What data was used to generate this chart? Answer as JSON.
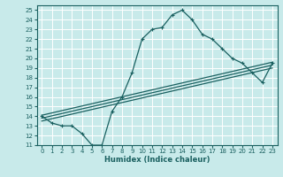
{
  "title": "",
  "xlabel": "Humidex (Indice chaleur)",
  "bg_color": "#c8eaea",
  "grid_color": "#ffffff",
  "line_color": "#1a6060",
  "xlim": [
    -0.5,
    23.5
  ],
  "ylim": [
    11,
    25.5
  ],
  "xticks": [
    0,
    1,
    2,
    3,
    4,
    5,
    6,
    7,
    8,
    9,
    10,
    11,
    12,
    13,
    14,
    15,
    16,
    17,
    18,
    19,
    20,
    21,
    22,
    23
  ],
  "yticks": [
    11,
    12,
    13,
    14,
    15,
    16,
    17,
    18,
    19,
    20,
    21,
    22,
    23,
    24,
    25
  ],
  "lines": [
    {
      "x": [
        0,
        1,
        2,
        3,
        4,
        5,
        6,
        7,
        8,
        9,
        10,
        11,
        12,
        13,
        14,
        15,
        16,
        17,
        18,
        19,
        20,
        21,
        22,
        23
      ],
      "y": [
        14,
        13.3,
        13,
        13,
        12.2,
        11,
        11,
        14.5,
        16,
        18.5,
        22,
        23,
        23.2,
        24.5,
        25,
        24,
        22.5,
        22,
        21,
        20,
        19.5,
        18.5,
        17.5,
        19.5
      ],
      "marker": "+"
    },
    {
      "x": [
        0,
        23
      ],
      "y": [
        13.5,
        19.0
      ],
      "marker": null
    },
    {
      "x": [
        0,
        23
      ],
      "y": [
        13.8,
        19.3
      ],
      "marker": null
    },
    {
      "x": [
        0,
        23
      ],
      "y": [
        14.1,
        19.6
      ],
      "marker": null
    }
  ],
  "tick_fontsize": 5,
  "xlabel_fontsize": 6,
  "linewidth": 0.9,
  "marker_size": 3
}
